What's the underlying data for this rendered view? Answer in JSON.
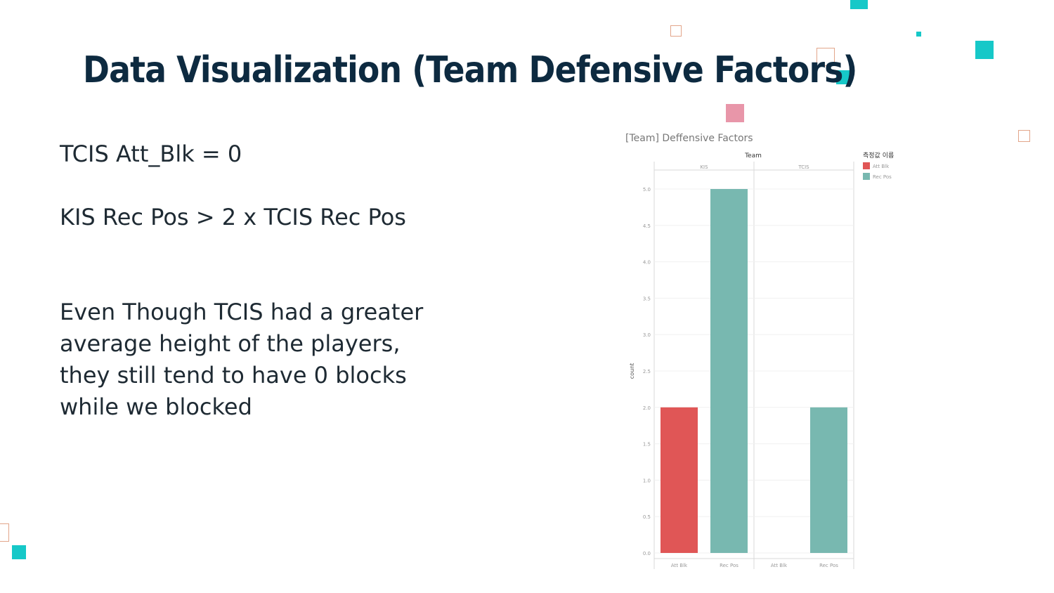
{
  "slide": {
    "title": "Data Visualization (Team Defensive Factors)",
    "line_1": "TCIS Att_Blk = 0",
    "line_2": "KIS Rec Pos > 2 x TCIS Rec Pos",
    "paragraph": [
      "Even Though TCIS had a greater",
      "average height of the players,",
      "they still tend to have 0 blocks",
      "while we blocked"
    ]
  },
  "colors": {
    "title": "#0d2a40",
    "teal_accent": "#16c8c8",
    "outline_accent": "#e2a58a",
    "pink_accent": "#e896a9",
    "att_blk": "#e05656",
    "rec_pos": "#78b8b0"
  },
  "chart_data": {
    "type": "bar",
    "title": "[Team] Deffensive Factors",
    "column_header": "Team",
    "panels": [
      "KIS",
      "TCIS"
    ],
    "categories": [
      "Att Blk",
      "Rec Pos"
    ],
    "series": [
      {
        "panel": "KIS",
        "category": "Att Blk",
        "value": 2.0
      },
      {
        "panel": "KIS",
        "category": "Rec Pos",
        "value": 5.0
      },
      {
        "panel": "TCIS",
        "category": "Att Blk",
        "value": 0.0
      },
      {
        "panel": "TCIS",
        "category": "Rec Pos",
        "value": 2.0
      }
    ],
    "ylabel": "count",
    "ylim": [
      0,
      5.0
    ],
    "yticks": [
      "0.0",
      "0.5",
      "1.0",
      "1.5",
      "2.0",
      "2.5",
      "3.0",
      "3.5",
      "4.0",
      "4.5",
      "5.0"
    ],
    "legend_title": "측정값 이름",
    "legend": [
      "Att Blk",
      "Rec Pos"
    ],
    "legend_position": "top-right",
    "grid": true
  }
}
